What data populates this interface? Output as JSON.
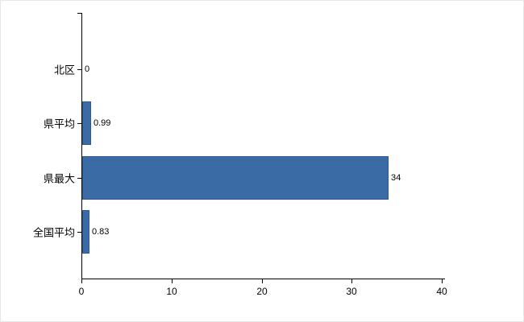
{
  "chart_data": {
    "type": "bar",
    "orientation": "horizontal",
    "title": "",
    "xlabel": "",
    "ylabel": "",
    "categories": [
      "北区",
      "県平均",
      "県最大",
      "全国平均"
    ],
    "values": [
      0,
      0.99,
      34,
      0.83
    ],
    "value_labels": [
      "0",
      "0.99",
      "34",
      "0.83"
    ],
    "x_ticks": [
      "0",
      "10",
      "20",
      "30",
      "40"
    ],
    "x_tick_values": [
      0,
      10,
      20,
      30,
      40
    ],
    "xlim": [
      0,
      40
    ],
    "bar_color": "#3b6ba5",
    "bar_border_color": "#2e5a8f",
    "axis_color": "#000000",
    "grid": false,
    "legend_position": "none"
  }
}
